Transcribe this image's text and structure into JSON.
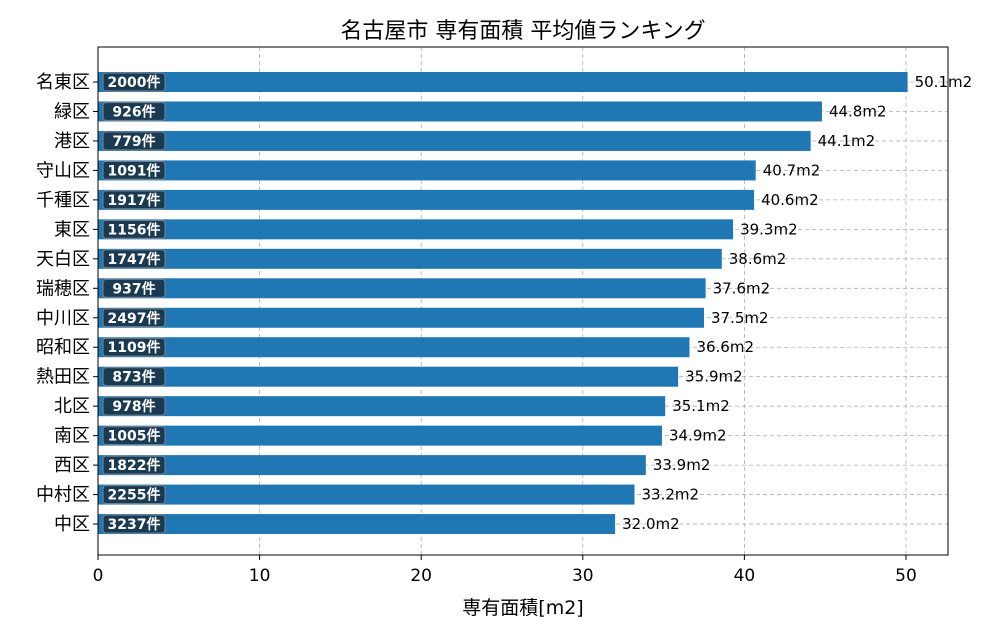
{
  "chart_data": {
    "type": "bar",
    "orientation": "horizontal",
    "title": "名古屋市 専有面積 平均値ランキング",
    "xlabel": "専有面積[m2]",
    "ylabel": "",
    "xlim": [
      0,
      52.6
    ],
    "xticks": [
      0,
      10,
      20,
      30,
      40,
      50
    ],
    "grid": true,
    "bar_color": "#1f77b4",
    "count_badge_color": "#1a3a52",
    "categories": [
      "名東区",
      "緑区",
      "港区",
      "守山区",
      "千種区",
      "東区",
      "天白区",
      "瑞穂区",
      "中川区",
      "昭和区",
      "熱田区",
      "北区",
      "南区",
      "西区",
      "中村区",
      "中区"
    ],
    "values": [
      50.1,
      44.8,
      44.1,
      40.7,
      40.6,
      39.3,
      38.6,
      37.6,
      37.5,
      36.6,
      35.9,
      35.1,
      34.9,
      33.9,
      33.2,
      32.0
    ],
    "value_labels": [
      "50.1m2",
      "44.8m2",
      "44.1m2",
      "40.7m2",
      "40.6m2",
      "39.3m2",
      "38.6m2",
      "37.6m2",
      "37.5m2",
      "36.6m2",
      "35.9m2",
      "35.1m2",
      "34.9m2",
      "33.9m2",
      "33.2m2",
      "32.0m2"
    ],
    "count_labels": [
      "2000件",
      "926件",
      "779件",
      "1091件",
      "1917件",
      "1156件",
      "1747件",
      "937件",
      "2497件",
      "1109件",
      "873件",
      "978件",
      "1005件",
      "1822件",
      "2255件",
      "3237件"
    ]
  }
}
